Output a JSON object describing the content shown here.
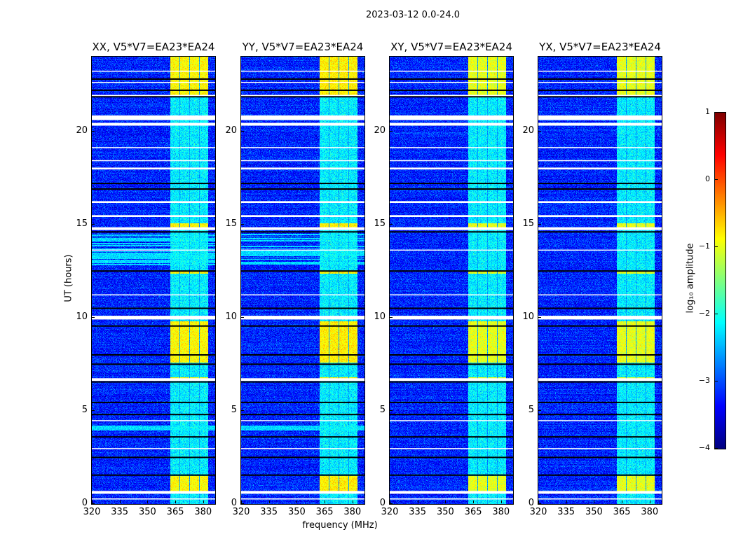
{
  "chart_data": {
    "type": "heatmap",
    "title": "2023-03-12 0.0-24.0",
    "xlabel": "frequency (MHz)",
    "ylabel": "UT (hours)",
    "xlim": [
      320,
      386.5
    ],
    "ylim": [
      0,
      24
    ],
    "xticks": [
      "320",
      "335",
      "350",
      "365",
      "380"
    ],
    "xtick_values": [
      320,
      335,
      350,
      365,
      380
    ],
    "yticks": [
      "0",
      "5",
      "10",
      "15",
      "20"
    ],
    "ytick_values": [
      0,
      5,
      10,
      15,
      20
    ],
    "colorbar": {
      "label": "log₁₀ amplitude",
      "range": [
        -4,
        1
      ],
      "ticks": [
        "1",
        "0",
        "−1",
        "−2",
        "−3",
        "−4"
      ],
      "tick_values": [
        1,
        0,
        -1,
        -2,
        -3,
        -4
      ],
      "colormap": "jet"
    },
    "background_level": -3.2,
    "subbands_mhz": [
      [
        362.3,
        367.2
      ],
      [
        367.6,
        372.5
      ],
      [
        372.9,
        377.8
      ],
      [
        378.2,
        382.6
      ]
    ],
    "band_level": -2.2,
    "bright_ranges_hours": [
      [
        0.6,
        1.5
      ],
      [
        7.6,
        9.8
      ],
      [
        21.9,
        24.0
      ],
      [
        14.85,
        15.05
      ],
      [
        12.35,
        12.5
      ],
      [
        6.7,
        6.8
      ]
    ],
    "bright_level": -1.0,
    "flagged_white_hours": [
      [
        0.55,
        0.7
      ],
      [
        0.25,
        0.3
      ],
      [
        6.6,
        6.75
      ],
      [
        9.9,
        10.1
      ],
      [
        14.7,
        14.85
      ],
      [
        15.4,
        15.5
      ],
      [
        16.15,
        16.25
      ],
      [
        17.95,
        18.05
      ],
      [
        20.3,
        20.45
      ],
      [
        20.6,
        20.85
      ],
      [
        21.85,
        21.95
      ],
      [
        13.6,
        13.65
      ],
      [
        11.2,
        11.25
      ],
      [
        2.95,
        3.0
      ],
      [
        4.45,
        4.5
      ],
      [
        18.4,
        18.45
      ],
      [
        19.1,
        19.15
      ],
      [
        22.6,
        22.65
      ],
      [
        23.2,
        23.25
      ]
    ],
    "black_lines_hours": [
      1.55,
      2.5,
      3.6,
      4.8,
      5.45,
      6.55,
      7.5,
      8.0,
      9.55,
      10.5,
      12.5,
      14.6,
      16.9,
      17.2,
      21.85,
      22.2,
      22.8
    ],
    "panels": [
      {
        "title": "XX, V5*V7=EA23*EA24",
        "band_gain": 0.15,
        "rfi_rows": true
      },
      {
        "title": "YY, V5*V7=EA23*EA24",
        "band_gain": 0.2,
        "rfi_rows": true
      },
      {
        "title": "XY, V5*V7=EA23*EA24",
        "band_gain": 0.0,
        "rfi_rows": false
      },
      {
        "title": "YX, V5*V7=EA23*EA24",
        "band_gain": 0.0,
        "rfi_rows": false
      }
    ]
  }
}
